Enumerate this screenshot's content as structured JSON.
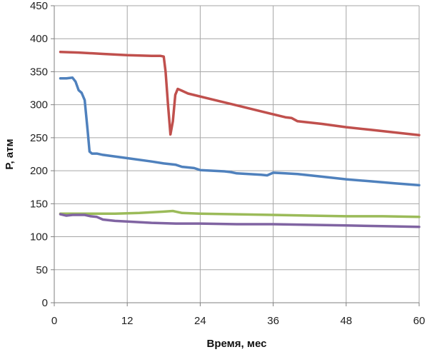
{
  "chart_data": {
    "type": "line",
    "title": "",
    "xlabel": "Время, мес",
    "ylabel": "P, атм",
    "xlim": [
      0,
      60
    ],
    "ylim": [
      0,
      450
    ],
    "xticks": [
      0,
      12,
      24,
      36,
      48,
      60
    ],
    "yticks": [
      0,
      50,
      100,
      150,
      200,
      250,
      300,
      350,
      400,
      450
    ],
    "grid": true,
    "legend": "none",
    "series": [
      {
        "color": "#c0504d",
        "x": [
          1,
          4,
          8,
          12,
          16,
          17.5,
          18,
          18.3,
          18.7,
          19.1,
          19.5,
          19.9,
          20.3,
          20.8,
          22,
          26,
          30,
          34,
          38,
          39,
          40,
          44,
          48,
          52,
          56,
          60
        ],
        "y": [
          380,
          379,
          377,
          375,
          374,
          374,
          373,
          350,
          300,
          255,
          275,
          315,
          324,
          322,
          317,
          308,
          299,
          290,
          281,
          280,
          275,
          271,
          266,
          262,
          258,
          254
        ]
      },
      {
        "color": "#4f81bd",
        "x": [
          1,
          2,
          3,
          3.5,
          4,
          4.5,
          5,
          5.5,
          5.8,
          6.2,
          7,
          8,
          12,
          16,
          18,
          20,
          21,
          22,
          23,
          24,
          26,
          28,
          29,
          30,
          32,
          34,
          35,
          36,
          38,
          40,
          44,
          48,
          52,
          56,
          60
        ],
        "y": [
          340,
          340,
          341,
          335,
          322,
          318,
          307,
          260,
          229,
          226,
          226,
          224,
          219,
          214,
          211,
          209,
          206,
          205,
          204,
          201,
          200,
          199,
          198,
          196,
          195,
          194,
          193,
          197,
          196,
          195,
          191,
          187,
          184,
          181,
          178
        ]
      },
      {
        "color": "#9bbb59",
        "x": [
          1,
          6,
          10,
          14,
          18,
          19.5,
          20,
          21,
          24,
          30,
          36,
          42,
          48,
          54,
          60
        ],
        "y": [
          135,
          135,
          135,
          136,
          138,
          139,
          138,
          136,
          135,
          134,
          133,
          132,
          131,
          131,
          130
        ]
      },
      {
        "color": "#8064a2",
        "x": [
          1,
          2,
          3,
          5,
          6,
          7,
          8,
          10,
          12,
          16,
          20,
          24,
          30,
          36,
          42,
          48,
          54,
          60
        ],
        "y": [
          134,
          132,
          133,
          133,
          131,
          130,
          126,
          124,
          123,
          121,
          120,
          120,
          119,
          119,
          118,
          117,
          116,
          115
        ]
      }
    ]
  }
}
